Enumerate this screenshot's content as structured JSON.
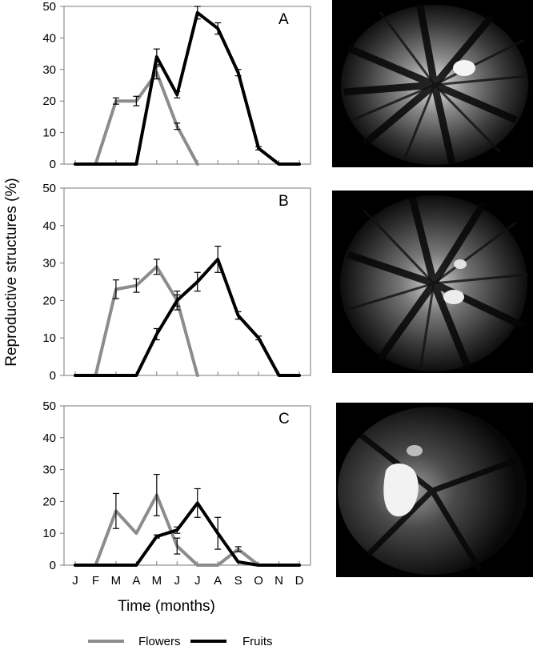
{
  "chart_data": {
    "type": "line",
    "ylabel": "Reproductive structures (%)",
    "xlabel": "Time (months)",
    "ylim": [
      0,
      50
    ],
    "yticks": [
      0,
      10,
      20,
      30,
      40,
      50
    ],
    "categories": [
      "J",
      "F",
      "M",
      "A",
      "M",
      "J",
      "J",
      "A",
      "S",
      "O",
      "N",
      "D"
    ],
    "colors": {
      "Flowers": "#8c8c8c",
      "Fruits": "#000000"
    },
    "legend": {
      "placement": "bottom",
      "entries": [
        "Flowers",
        "Fruits"
      ]
    },
    "panels": [
      {
        "label": "A",
        "series": [
          {
            "name": "Flowers",
            "x": [
              0,
              1,
              2,
              3,
              4,
              5,
              6
            ],
            "y": [
              0,
              0,
              20,
              20,
              29,
              12,
              0
            ],
            "err": [
              0,
              0,
              1,
              1.5,
              2,
              1,
              0
            ]
          },
          {
            "name": "Fruits",
            "x": [
              0,
              1,
              2,
              3,
              4,
              5,
              6,
              7,
              8,
              9,
              10,
              11
            ],
            "y": [
              0,
              0,
              0,
              0,
              34,
              22,
              48,
              43,
              29,
              5,
              0,
              0
            ],
            "err": [
              0,
              0,
              0,
              0,
              2.5,
              1,
              2,
              1.8,
              1,
              0.5,
              0,
              0
            ]
          }
        ]
      },
      {
        "label": "B",
        "series": [
          {
            "name": "Flowers",
            "x": [
              0,
              1,
              2,
              3,
              4,
              5,
              6
            ],
            "y": [
              0,
              0,
              23,
              24,
              29,
              20,
              0
            ],
            "err": [
              0,
              0,
              2.5,
              1.8,
              2,
              2.5,
              0
            ]
          },
          {
            "name": "Fruits",
            "x": [
              0,
              1,
              2,
              3,
              4,
              5,
              6,
              7,
              8,
              9,
              10,
              11
            ],
            "y": [
              0,
              0,
              0,
              0,
              11,
              20,
              25,
              31,
              16,
              10,
              0,
              0
            ],
            "err": [
              0,
              0,
              0,
              0,
              1.5,
              1.5,
              2.5,
              3.5,
              1,
              0.5,
              0,
              0
            ]
          }
        ]
      },
      {
        "label": "C",
        "series": [
          {
            "name": "Flowers",
            "x": [
              0,
              1,
              2,
              3,
              4,
              5,
              6,
              7,
              8,
              9
            ],
            "y": [
              0,
              0,
              17,
              10,
              22,
              6,
              0,
              0,
              5,
              0
            ],
            "err": [
              0,
              0,
              5.5,
              0,
              6.5,
              2.5,
              0,
              0,
              0.8,
              0
            ]
          },
          {
            "name": "Fruits",
            "x": [
              0,
              1,
              2,
              3,
              4,
              5,
              6,
              7,
              8,
              9,
              10,
              11
            ],
            "y": [
              0,
              0,
              0,
              0,
              9,
              11,
              19.5,
              10,
              1,
              0,
              0,
              0
            ],
            "err": [
              0,
              0,
              0,
              0,
              0.5,
              1,
              4.5,
              5,
              0,
              0,
              0,
              0
            ]
          }
        ]
      }
    ]
  }
}
